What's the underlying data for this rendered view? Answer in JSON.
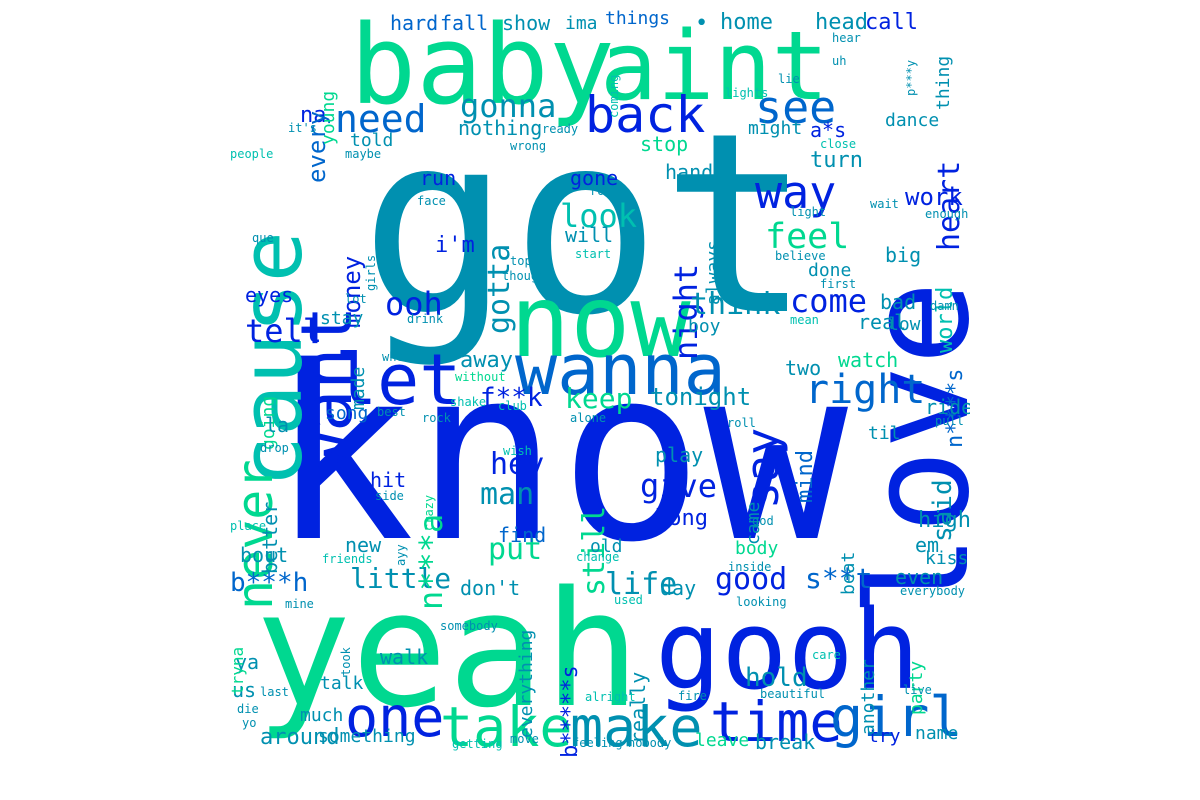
{
  "colors": {
    "background": "#ffffff",
    "blue": "#0022e0",
    "teal": "#0090b0",
    "green": "#00d890",
    "sky": "#0066cc",
    "aqua": "#00c0b0"
  },
  "words": {
    "got": "got",
    "know": "know",
    "yeah": "yeah",
    "gooh": "gooh",
    "love": "love",
    "baby": "baby",
    "aint": "aint",
    "now": "now",
    "cause": "cause",
    "wanna": "wanna",
    "let": "let",
    "want": "want",
    "take": "take",
    "make": "make",
    "time": "time",
    "girl": "girl",
    "one": "one",
    "back": "back",
    "see": "see",
    "way": "way",
    "say": "say",
    "right": "right",
    "never": "never",
    "need": "need",
    "gonna": "gonna",
    "feel": "feel",
    "come": "come",
    "look": "look",
    "tell": "tell",
    "ooh": "ooh",
    "night": "night",
    "think": "think",
    "hey": "hey",
    "give": "give",
    "good": "good",
    "little": "little",
    "life": "life",
    "still": "still",
    "man": "man",
    "put": "put",
    "keep": "keep",
    "heart": "heart",
    "gotta": "gotta",
    "na": "na",
    "every": "every",
    "money": "money",
    "fk": "f**k",
    "sk": "s**t",
    "bh": "b***h",
    "na_word": "n***a",
    "ns": "n****s",
    "bs": "b*****s",
    "hold": "hold",
    "tonight": "tonight",
    "said": "said",
    "world": "world",
    "work": "work",
    "mind": "mind",
    "hard": "hard",
    "fall": "fall",
    "show": "show",
    "ima": "ima",
    "things": "things",
    "home": "home",
    "head": "head",
    "call": "call",
    "nothing": "nothing",
    "told": "told",
    "young": "young",
    "eyes": "eyes",
    "stay": "stay",
    "made": "made",
    "going": "going",
    "la": "la",
    "better": "better",
    "bout": "bout",
    "hit": "hit",
    "new": "new",
    "away": "away",
    "song": "song",
    "long": "long",
    "play": "play",
    "find": "find",
    "old": "old",
    "dont": "don't",
    "day": "day",
    "im": "i'm",
    "run": "run",
    "gone": "gone",
    "will": "will",
    "always": "always",
    "hands": "hands",
    "turn": "turn",
    "stop": "stop",
    "might": "might",
    "as": "a*s",
    "dance": "dance",
    "big": "big",
    "done": "done",
    "real": "real",
    "low": "low",
    "bad": "bad",
    "boy": "boy",
    "two": "two",
    "watch": "watch",
    "ride": "ride",
    "til": "til",
    "high": "high",
    "em": "em",
    "kiss": "kiss",
    "even": "even",
    "body": "body",
    "beat": "beat",
    "came": "came",
    "really": "really",
    "everything": "everything",
    "walk": "walk",
    "talk": "talk",
    "much": "much",
    "around": "around",
    "something": "something",
    "us": "us",
    "ya": "ya",
    "tryna": "tryna",
    "leave": "leave",
    "break": "break",
    "try": "try",
    "name": "name",
    "party": "party",
    "another": "another",
    "thing": "thing",
    "py": "p***y",
    "enough": "enough",
    "wait": "wait",
    "light": "light",
    "first": "first",
    "believe": "believe",
    "mean": "mean",
    "damn": "damn",
    "pull": "pull",
    "roll": "roll",
    "god": "god",
    "looking": "looking",
    "inside": "inside",
    "beautiful": "beautiful",
    "live": "live",
    "everybody": "everybody",
    "care": "care",
    "fire": "fire",
    "nobody": "nobody",
    "feeling": "feeling",
    "alright": "alright",
    "left": "left",
    "used": "used",
    "change": "change",
    "somebody": "somebody",
    "getting": "getting",
    "move": "move",
    "last": "last",
    "die": "die",
    "yo": "yo",
    "took": "took",
    "mine": "mine",
    "place": "place",
    "ayy": "ayy",
    "side": "side",
    "crazy": "crazy",
    "friends": "friends",
    "drop": "drop",
    "wish": "wish",
    "club": "club",
    "alone": "alone",
    "shake": "shake",
    "rock": "rock",
    "best": "best",
    "without": "without",
    "whole": "whole",
    "drink": "drink",
    "lot": "lot",
    "top": "top",
    "though": "though",
    "start": "start",
    "round": "round",
    "face": "face",
    "hand": "hand",
    "girls": "girls",
    "que": "que",
    "people": "people",
    "maybe": "maybe",
    "its": "it's",
    "wrong": "wrong",
    "ready": "ready",
    "coming": "coming",
    "lights": "lights",
    "lie": "lie",
    "uh": "uh",
    "hear": "hear",
    "close": "close",
    "bullet": "•"
  },
  "layout_words": [
    {
      "k": "got",
      "c": "teal"
    },
    {
      "k": "know",
      "c": "blue"
    },
    {
      "k": "yeah",
      "c": "green"
    },
    {
      "k": "gooh",
      "c": "blue"
    },
    {
      "k": "love",
      "c": "blue"
    },
    {
      "k": "baby",
      "c": "green"
    },
    {
      "k": "aint",
      "c": "green"
    },
    {
      "k": "now",
      "c": "green"
    },
    {
      "k": "cause",
      "c": "aqua"
    },
    {
      "k": "wanna",
      "c": "sky"
    },
    {
      "k": "let",
      "c": "blue"
    },
    {
      "k": "want",
      "c": "blue"
    },
    {
      "k": "take",
      "c": "green"
    },
    {
      "k": "make",
      "c": "teal"
    },
    {
      "k": "time",
      "c": "blue"
    },
    {
      "k": "girl",
      "c": "sky"
    },
    {
      "k": "one",
      "c": "blue"
    },
    {
      "k": "back",
      "c": "blue"
    },
    {
      "k": "see",
      "c": "sky"
    },
    {
      "k": "way",
      "c": "blue"
    }
  ]
}
